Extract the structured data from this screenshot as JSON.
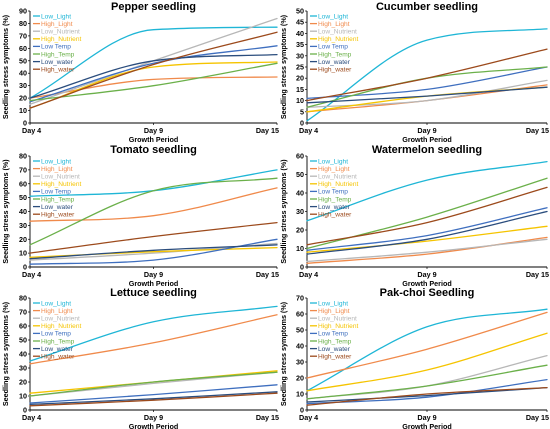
{
  "colors": {
    "Low_Light": "#1fb6d6",
    "High_Light": "#f08a4b",
    "Low_Nutrient": "#b7b7b7",
    "High_Nutrient": "#f5c400",
    "Low Temp": "#3f6fbf",
    "High_Temp": "#6bb04a",
    "Low_water": "#2b4d7d",
    "High_water": "#9c4a1c"
  },
  "chart_data": [
    {
      "type": "line",
      "title": "Pepper seedling",
      "xlabel": "Growth Period",
      "ylabel": "Seedling stress symptoms (%)",
      "x": [
        "Day 4",
        "Day 9",
        "Day 15"
      ],
      "ylim": [
        0,
        90
      ],
      "yticks": [
        0,
        10,
        20,
        30,
        40,
        50,
        60,
        70,
        80,
        90
      ],
      "legend": "top-left",
      "series": [
        {
          "name": "Low_Light",
          "values": [
            20,
            75,
            77
          ]
        },
        {
          "name": "High_Light",
          "values": [
            20,
            35,
            37
          ]
        },
        {
          "name": "Low_Nutrient",
          "values": [
            15,
            50,
            84
          ]
        },
        {
          "name": "High_Nutrient",
          "values": [
            12,
            45,
            49
          ]
        },
        {
          "name": "Low Temp",
          "values": [
            17,
            48,
            62
          ]
        },
        {
          "name": "High_Temp",
          "values": [
            18,
            30,
            48
          ]
        },
        {
          "name": "Low_water",
          "values": [
            20,
            50,
            55
          ]
        },
        {
          "name": "High_water",
          "values": [
            12,
            47,
            73
          ]
        }
      ]
    },
    {
      "type": "line",
      "title": "Cucumber seedling",
      "xlabel": "Growth Period",
      "ylabel": "Seedling stress symptoms (%)",
      "x": [
        "Day 4",
        "Day 9",
        "Day 15"
      ],
      "ylim": [
        0,
        50
      ],
      "yticks": [
        0,
        5,
        10,
        15,
        20,
        25,
        30,
        35,
        40,
        45,
        50
      ],
      "legend": "top-left",
      "series": [
        {
          "name": "Low_Light",
          "values": [
            1,
            37,
            42
          ]
        },
        {
          "name": "High_Light",
          "values": [
            5,
            10,
            17
          ]
        },
        {
          "name": "Low_Nutrient",
          "values": [
            7,
            10,
            19
          ]
        },
        {
          "name": "High_Nutrient",
          "values": [
            5,
            12,
            16
          ]
        },
        {
          "name": "Low Temp",
          "values": [
            11,
            15,
            25
          ]
        },
        {
          "name": "High_Temp",
          "values": [
            7,
            20,
            25
          ]
        },
        {
          "name": "Low_water",
          "values": [
            9,
            12,
            16
          ]
        },
        {
          "name": "High_water",
          "values": [
            10,
            20,
            33
          ]
        }
      ]
    },
    {
      "type": "line",
      "title": "Tomato seedling",
      "xlabel": "Growth Period",
      "ylabel": "Seedling stress symptoms (%)",
      "x": [
        "Day 4",
        "Day 9",
        "Day 15"
      ],
      "ylim": [
        0,
        80
      ],
      "yticks": [
        0,
        10,
        20,
        30,
        40,
        50,
        60,
        70,
        80
      ],
      "legend": "top-left",
      "series": [
        {
          "name": "Low_Light",
          "values": [
            51,
            55,
            70
          ]
        },
        {
          "name": "High_Light",
          "values": [
            33,
            37,
            57
          ]
        },
        {
          "name": "Low_Nutrient",
          "values": [
            5,
            10,
            17
          ]
        },
        {
          "name": "High_Nutrient",
          "values": [
            7,
            11,
            14
          ]
        },
        {
          "name": "Low Temp",
          "values": [
            2,
            5,
            20
          ]
        },
        {
          "name": "High_Temp",
          "values": [
            16,
            55,
            64
          ]
        },
        {
          "name": "Low_water",
          "values": [
            6,
            12,
            16
          ]
        },
        {
          "name": "High_water",
          "values": [
            10,
            22,
            32
          ]
        }
      ]
    },
    {
      "type": "line",
      "title": "Watermelon seedling",
      "xlabel": "Growth Period",
      "ylabel": "Seedling stress symptoms (%)",
      "x": [
        "Day 4",
        "Day 9",
        "Day 15"
      ],
      "ylim": [
        0,
        60
      ],
      "yticks": [
        0,
        10,
        20,
        30,
        40,
        50,
        60
      ],
      "legend": "top-left",
      "series": [
        {
          "name": "Low_Light",
          "values": [
            25,
            47,
            57
          ]
        },
        {
          "name": "High_Light",
          "values": [
            2,
            7,
            16
          ]
        },
        {
          "name": "Low_Nutrient",
          "values": [
            3,
            8,
            15
          ]
        },
        {
          "name": "High_Nutrient",
          "values": [
            8,
            14,
            22
          ]
        },
        {
          "name": "Low Temp",
          "values": [
            9,
            17,
            32
          ]
        },
        {
          "name": "High_Temp",
          "values": [
            10,
            27,
            48
          ]
        },
        {
          "name": "Low_water",
          "values": [
            7,
            15,
            30
          ]
        },
        {
          "name": "High_water",
          "values": [
            12,
            24,
            43
          ]
        }
      ]
    },
    {
      "type": "line",
      "title": "Lettuce seedling",
      "xlabel": "Growth Period",
      "ylabel": "Seedling stress symptoms (%)",
      "x": [
        "Day 4",
        "Day 9",
        "Day 15"
      ],
      "ylim": [
        0,
        80
      ],
      "yticks": [
        0,
        10,
        20,
        30,
        40,
        50,
        60,
        70,
        80
      ],
      "legend": "top-left",
      "series": [
        {
          "name": "Low_Light",
          "values": [
            35,
            63,
            74
          ]
        },
        {
          "name": "High_Light",
          "values": [
            33,
            48,
            68
          ]
        },
        {
          "name": "Low_Nutrient",
          "values": [
            10,
            19,
            27
          ]
        },
        {
          "name": "High_Nutrient",
          "values": [
            12,
            20,
            28
          ]
        },
        {
          "name": "Low Temp",
          "values": [
            5,
            11,
            18
          ]
        },
        {
          "name": "High_Temp",
          "values": [
            10,
            20,
            27
          ]
        },
        {
          "name": "Low_water",
          "values": [
            4,
            8,
            13
          ]
        },
        {
          "name": "High_water",
          "values": [
            3,
            7,
            12
          ]
        }
      ]
    },
    {
      "type": "line",
      "title": "Pak-choi Seedling",
      "xlabel": "Growth Period",
      "ylabel": "Seedling stress symptoms (%)",
      "x": [
        "Day 4",
        "Day 9",
        "Day 15"
      ],
      "ylim": [
        0,
        70
      ],
      "yticks": [
        0,
        10,
        20,
        30,
        40,
        50,
        60,
        70
      ],
      "legend": "top-left",
      "series": [
        {
          "name": "Low_Light",
          "values": [
            12,
            52,
            63
          ]
        },
        {
          "name": "High_Light",
          "values": [
            20,
            38,
            61
          ]
        },
        {
          "name": "Low_Nutrient",
          "values": [
            7,
            15,
            34
          ]
        },
        {
          "name": "High_Nutrient",
          "values": [
            12,
            25,
            48
          ]
        },
        {
          "name": "Low Temp",
          "values": [
            4,
            8,
            19
          ]
        },
        {
          "name": "High_Temp",
          "values": [
            7,
            15,
            28
          ]
        },
        {
          "name": "Low_water",
          "values": [
            5,
            9,
            14
          ]
        },
        {
          "name": "High_water",
          "values": [
            3,
            10,
            14
          ]
        }
      ]
    }
  ]
}
